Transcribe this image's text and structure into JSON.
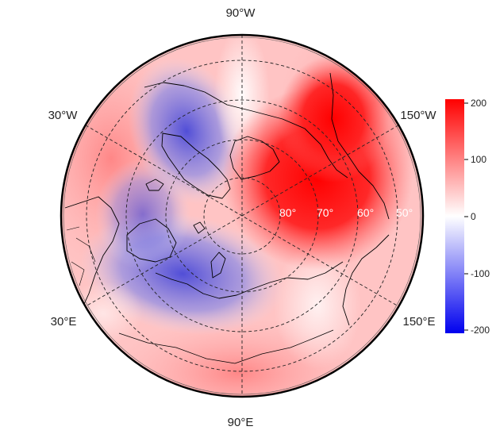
{
  "map": {
    "projection": "north polar stereographic",
    "longitude_labels": {
      "top": "90°W",
      "upper_left": "30°W",
      "upper_right": "150°W",
      "lower_left": "30°E",
      "lower_right": "150°E",
      "bottom": "90°E"
    },
    "latitude_labels": [
      "80°",
      "70°",
      "60°",
      "50°"
    ],
    "graticule_style": "dashed"
  },
  "colorbar": {
    "ticks": [
      "200",
      "100",
      "0",
      "-100",
      "-200"
    ],
    "range": [
      -200,
      200
    ],
    "colors": {
      "low": "#0000ee",
      "mid": "#ffffff",
      "high": "#ff0000"
    }
  },
  "field": {
    "positive_center_color": "#ff0000",
    "negative_center_color": "#4040d8"
  }
}
